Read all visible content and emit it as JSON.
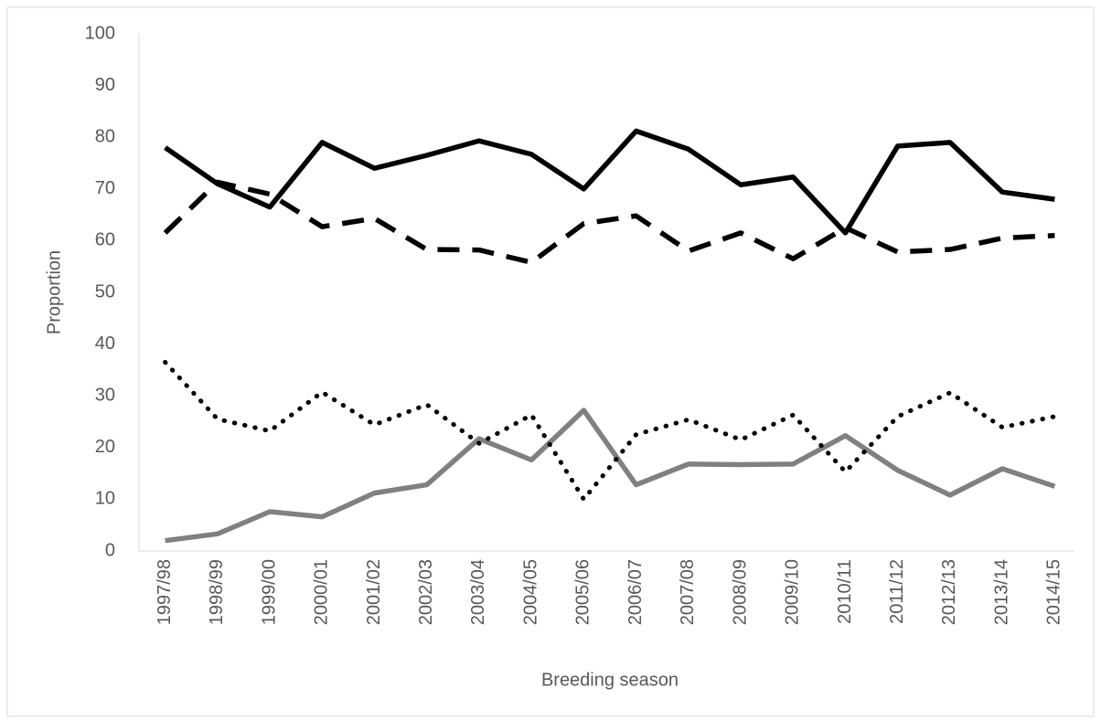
{
  "chart_data": {
    "type": "line",
    "x_label": "Breeding season",
    "y_label": "Proportion",
    "categories": [
      "1997/98",
      "1998/99",
      "1999/00",
      "2000/01",
      "2001/02",
      "2002/03",
      "2003/04",
      "2004/05",
      "2005/06",
      "2006/07",
      "2007/08",
      "2008/09",
      "2009/10",
      "2010/11",
      "2011/12",
      "2012/13",
      "2013/14",
      "2014/15"
    ],
    "series": [
      {
        "color": "#000000",
        "dash": "solid",
        "values": [
          78,
          71,
          66.5,
          79,
          74,
          76.5,
          79.3,
          76.7,
          70,
          81.2,
          77.7,
          70.8,
          72.3,
          61.5,
          78.3,
          79,
          69.4,
          68
        ]
      },
      {
        "color": "#000000",
        "dash": "dashed",
        "values": [
          61.5,
          71.3,
          69,
          62.7,
          64.3,
          58.3,
          58.2,
          55.8,
          63.3,
          64.8,
          58,
          61.5,
          56.5,
          62.5,
          57.8,
          58.3,
          60.5,
          61
        ]
      },
      {
        "color": "#000000",
        "dash": "dotted",
        "values": [
          36.5,
          25.5,
          23.2,
          30.7,
          24.4,
          28.3,
          20.8,
          26.3,
          10,
          22.5,
          25.4,
          21.5,
          26.3,
          15.3,
          26,
          30.6,
          23.9,
          26
        ]
      },
      {
        "color": "#808080",
        "dash": "solid",
        "values": [
          2,
          3.3,
          7.6,
          6.6,
          11.2,
          12.8,
          21.7,
          17.6,
          27.2,
          12.8,
          16.8,
          16.7,
          16.8,
          22.3,
          15.6,
          10.8,
          15.9,
          12.5
        ]
      }
    ],
    "ylim": [
      0,
      100
    ],
    "yticks": [
      0,
      10,
      20,
      30,
      40,
      50,
      60,
      70,
      80,
      90,
      100
    ],
    "grid": false
  }
}
